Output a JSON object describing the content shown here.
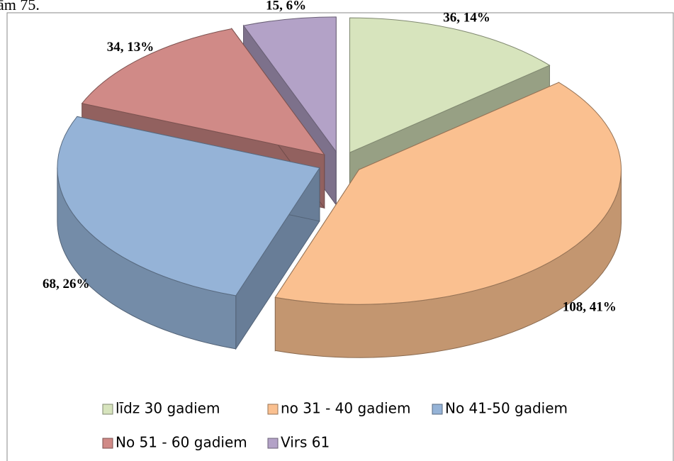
{
  "caption": "ām 75.",
  "chart_data": {
    "type": "pie",
    "categories": [
      "līdz 30 gadiem",
      "no 31 - 40 gadiem",
      "No 41-50 gadiem",
      "No 51 - 60 gadiem",
      "Virs 61"
    ],
    "values": [
      36,
      108,
      68,
      34,
      15
    ],
    "value_labels": [
      "36, 14%",
      "108, 41%",
      "68, 26%",
      "34, 13%",
      "15, 6%"
    ],
    "colors": [
      "#d7e4bd",
      "#fac090",
      "#95b3d7",
      "#d08a87",
      "#b3a2c7"
    ],
    "legend": "bottom"
  }
}
